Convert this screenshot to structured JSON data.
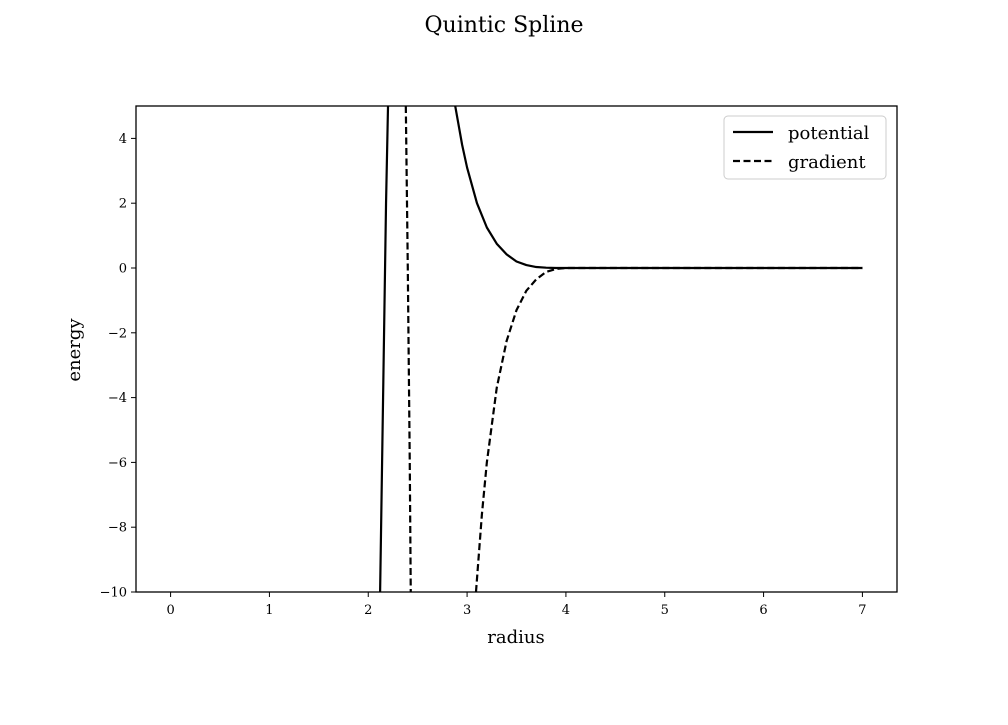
{
  "chart_data": {
    "type": "line",
    "title": "Quintic Spline",
    "xlabel": "radius",
    "ylabel": "energy",
    "xlim": [
      -0.35,
      7.35
    ],
    "ylim": [
      -10,
      5
    ],
    "xticks": [
      "0",
      "1",
      "2",
      "3",
      "4",
      "5",
      "6",
      "7"
    ],
    "yticks": [
      "−10",
      "−8",
      "−6",
      "−4",
      "−2",
      "0",
      "2",
      "4"
    ],
    "xtick_values": [
      0,
      1,
      2,
      3,
      4,
      5,
      6,
      7
    ],
    "ytick_values": [
      -10,
      -8,
      -6,
      -4,
      -2,
      0,
      2,
      4
    ],
    "grid": false,
    "legend_position": "top-right",
    "color": "#000000",
    "series": [
      {
        "name": "potential",
        "style": "solid",
        "segments": [
          {
            "x": [
              2.12,
              2.15,
              2.18,
              2.2
            ],
            "y": [
              -10,
              -4,
              2,
              5
            ]
          },
          {
            "x": [
              2.88,
              2.95,
              3.0,
              3.1,
              3.2,
              3.3,
              3.4,
              3.5,
              3.6,
              3.7,
              3.8,
              3.9,
              4.0,
              4.5,
              5.0,
              6.0,
              7.0
            ],
            "y": [
              5,
              3.8,
              3.1,
              2.0,
              1.25,
              0.75,
              0.42,
              0.2,
              0.09,
              0.03,
              0.01,
              0.0,
              0.0,
              0.0,
              0.0,
              0.0,
              0.0
            ]
          }
        ]
      },
      {
        "name": "gradient",
        "style": "dashed",
        "segments": [
          {
            "x": [
              2.38,
              2.4,
              2.42,
              2.43
            ],
            "y": [
              5,
              0,
              -6,
              -10
            ]
          },
          {
            "x": [
              3.09,
              3.15,
              3.2,
              3.3,
              3.4,
              3.5,
              3.6,
              3.7,
              3.8,
              3.9,
              4.0,
              4.5,
              5.0,
              6.0,
              7.0
            ],
            "y": [
              -10,
              -7.6,
              -6.0,
              -3.7,
              -2.25,
              -1.3,
              -0.7,
              -0.35,
              -0.12,
              -0.03,
              0.0,
              0.0,
              0.0,
              0.0,
              0.0
            ]
          }
        ]
      }
    ]
  }
}
